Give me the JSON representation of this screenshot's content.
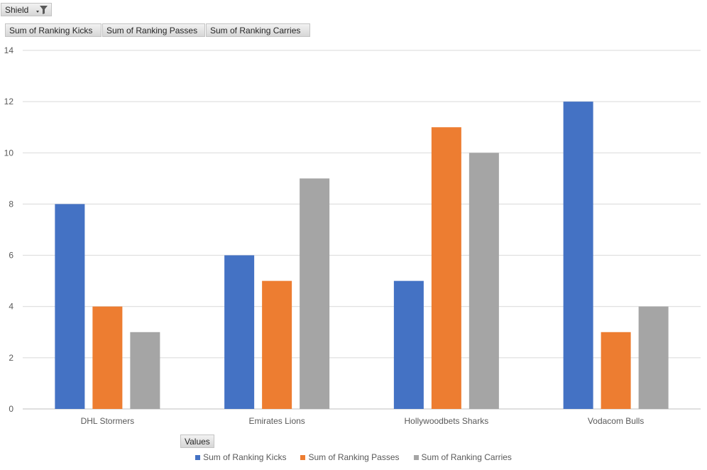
{
  "filter": {
    "label": "Shield",
    "icon": "filter-icon"
  },
  "value_fields": [
    "Sum of Ranking  Kicks",
    "Sum of Ranking  Passes",
    "Sum of Ranking  Carries"
  ],
  "values_button": "Values",
  "colors": {
    "kicks": "#4472c4",
    "passes": "#ed7d31",
    "carries": "#a5a5a5"
  },
  "chart_data": {
    "type": "bar",
    "categories": [
      "DHL Stormers",
      "Emirates Lions",
      "Hollywoodbets Sharks",
      "Vodacom Bulls"
    ],
    "series": [
      {
        "name": "Sum of Ranking  Kicks",
        "values": [
          8,
          6,
          5,
          12
        ]
      },
      {
        "name": "Sum of Ranking  Passes",
        "values": [
          4,
          5,
          11,
          3
        ]
      },
      {
        "name": "Sum of Ranking  Carries",
        "values": [
          3,
          9,
          10,
          4
        ]
      }
    ],
    "ylim": [
      0,
      14
    ],
    "yticks": [
      0,
      2,
      4,
      6,
      8,
      10,
      12,
      14
    ],
    "grid": true,
    "legend_position": "bottom"
  }
}
